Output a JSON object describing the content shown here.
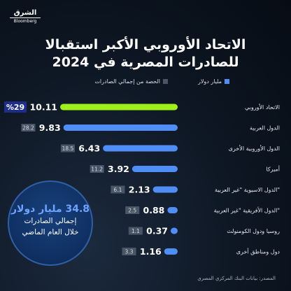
{
  "brand": {
    "name_ar": "الشرق",
    "name_en": "Bloomberg"
  },
  "title": {
    "line1": "الاتحاد الأوروبي الأكبر استقبالا",
    "line2": "للصادرات المصرية في 2024"
  },
  "legend": {
    "value_label": "مليار دولار",
    "share_label": "الحصة من إجمالي الصادرات"
  },
  "callout": {
    "line1": "34.8 مليار دولار",
    "line2": "إجمالي الصادرات",
    "line3": "خلال العام الماضي"
  },
  "source": "المصدر: بيانات البنك المركزي المصري",
  "colors": {
    "highlight": "#9ef01a",
    "bar": "#4f8ef7",
    "badge": "#4a5566",
    "highlight_badge": "#1e2c8a"
  },
  "chart_data": {
    "type": "bar",
    "orientation": "horizontal",
    "categories": [
      "الاتحاد الأوروبي",
      "الدول العربية",
      "الدول الأوروبية الأخرى",
      "أميركا",
      "الدول الاسيوية \"غير العربية\"",
      "الدول الأفريقية \"غير العربية\"",
      "روسيا ودول الكومنولث",
      "دول ومناطق أخرى"
    ],
    "series": [
      {
        "name": "مليار دولار",
        "values": [
          10.11,
          9.83,
          6.43,
          3.92,
          2.13,
          0.88,
          0.37,
          1.16
        ],
        "value_labels": [
          "10.11",
          "9.83",
          "6.43",
          "3.92",
          "2.13",
          "0.88",
          "0.37",
          "1.16"
        ]
      },
      {
        "name": "الحصة من إجمالي الصادرات",
        "values": [
          29,
          28.2,
          18.5,
          11.2,
          6.1,
          2.5,
          1.1,
          3.3
        ],
        "value_labels": [
          "%29",
          "28.2",
          "18.5",
          "11.2",
          "6.1",
          "2.5",
          "1.1",
          "3.3"
        ]
      }
    ],
    "highlight_index": 0,
    "xlim": [
      0,
      10.11
    ]
  }
}
